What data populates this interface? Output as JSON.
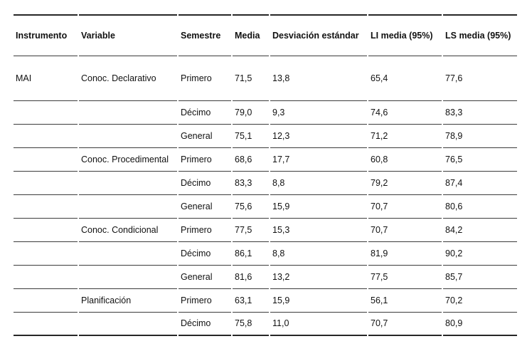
{
  "colors": {
    "rule_color": "#3c3c3c",
    "outer_rule_color": "#262626",
    "text_color": "#111111",
    "background": "#ffffff"
  },
  "table": {
    "columns": [
      "Instrumento",
      "Variable",
      "Semestre",
      "Media",
      "Desviación estándar",
      "LI media (95%)",
      "LS media (95%)"
    ],
    "rows": [
      [
        "MAI",
        "Conoc. Declarativo",
        "Primero",
        "71,5",
        "13,8",
        "65,4",
        "77,6"
      ],
      [
        "",
        "",
        "Décimo",
        "79,0",
        "9,3",
        "74,6",
        "83,3"
      ],
      [
        "",
        "",
        "General",
        "75,1",
        "12,3",
        "71,2",
        "78,9"
      ],
      [
        "",
        "Conoc. Procedimental",
        "Primero",
        "68,6",
        "17,7",
        "60,8",
        "76,5"
      ],
      [
        "",
        "",
        "Décimo",
        "83,3",
        "8,8",
        "79,2",
        "87,4"
      ],
      [
        "",
        "",
        "General",
        "75,6",
        "15,9",
        "70,7",
        "80,6"
      ],
      [
        "",
        "Conoc. Condicional",
        "Primero",
        "77,5",
        "15,3",
        "70,7",
        "84,2"
      ],
      [
        "",
        "",
        "Décimo",
        "86,1",
        "8,8",
        "81,9",
        "90,2"
      ],
      [
        "",
        "",
        "General",
        "81,6",
        "13,2",
        "77,5",
        "85,7"
      ],
      [
        "",
        "Planificación",
        "Primero",
        "63,1",
        "15,9",
        "56,1",
        "70,2"
      ],
      [
        "",
        "",
        "Décimo",
        "75,8",
        "11,0",
        "70,7",
        "80,9"
      ]
    ]
  }
}
